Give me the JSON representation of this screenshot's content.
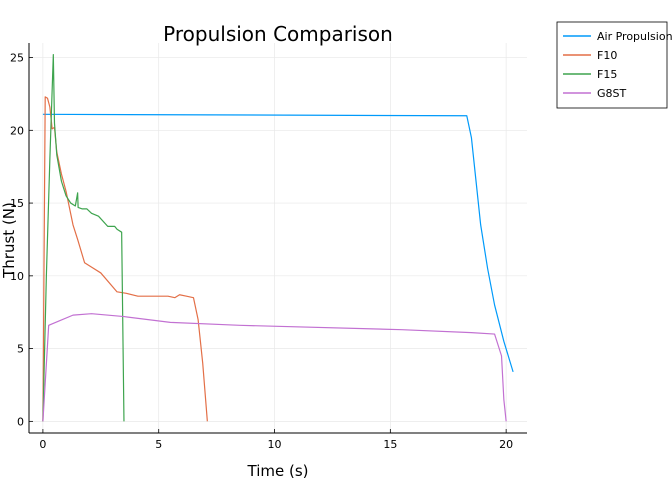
{
  "chart_data": {
    "type": "line",
    "title": "Propulsion Comparison",
    "xlabel": "Time (s)",
    "ylabel": "Thrust (N)",
    "xlim": [
      -0.6,
      20.9
    ],
    "ylim": [
      -0.8,
      26.0
    ],
    "xticks": [
      0,
      5,
      10,
      15,
      20
    ],
    "yticks": [
      0,
      5,
      10,
      15,
      20,
      25
    ],
    "grid": true,
    "legend_position": "outside top-right",
    "series": [
      {
        "name": "Air Propulsion",
        "color": "#009AFA",
        "points": [
          [
            0.0,
            21.1
          ],
          [
            18.3,
            21.0
          ],
          [
            18.5,
            19.5
          ],
          [
            18.7,
            16.5
          ],
          [
            18.9,
            13.5
          ],
          [
            19.2,
            10.5
          ],
          [
            19.5,
            8.0
          ],
          [
            19.9,
            5.5
          ],
          [
            20.3,
            3.4
          ]
        ]
      },
      {
        "name": "F10",
        "color": "#E36F47",
        "points": [
          [
            0.0,
            0.0
          ],
          [
            0.1,
            22.3
          ],
          [
            0.2,
            22.2
          ],
          [
            0.3,
            21.6
          ],
          [
            0.4,
            20.1
          ],
          [
            0.5,
            20.2
          ],
          [
            0.6,
            18.5
          ],
          [
            0.8,
            17.0
          ],
          [
            1.0,
            15.8
          ],
          [
            1.3,
            13.5
          ],
          [
            1.5,
            12.5
          ],
          [
            1.8,
            10.9
          ],
          [
            2.1,
            10.6
          ],
          [
            2.5,
            10.2
          ],
          [
            3.2,
            8.9
          ],
          [
            3.6,
            8.8
          ],
          [
            4.1,
            8.6
          ],
          [
            5.4,
            8.6
          ],
          [
            5.7,
            8.5
          ],
          [
            5.9,
            8.7
          ],
          [
            6.2,
            8.6
          ],
          [
            6.5,
            8.5
          ],
          [
            6.7,
            7.0
          ],
          [
            6.9,
            4.0
          ],
          [
            7.1,
            0.0
          ]
        ]
      },
      {
        "name": "F15",
        "color": "#3EA44E",
        "points": [
          [
            0.0,
            0.0
          ],
          [
            0.15,
            10.0
          ],
          [
            0.3,
            18.0
          ],
          [
            0.45,
            25.2
          ],
          [
            0.5,
            20.5
          ],
          [
            0.6,
            18.3
          ],
          [
            0.8,
            16.5
          ],
          [
            1.0,
            15.5
          ],
          [
            1.2,
            15.0
          ],
          [
            1.4,
            14.8
          ],
          [
            1.5,
            15.7
          ],
          [
            1.52,
            14.7
          ],
          [
            1.7,
            14.6
          ],
          [
            1.9,
            14.6
          ],
          [
            2.1,
            14.3
          ],
          [
            2.4,
            14.1
          ],
          [
            2.8,
            13.4
          ],
          [
            3.1,
            13.4
          ],
          [
            3.2,
            13.2
          ],
          [
            3.4,
            13.0
          ],
          [
            3.5,
            0.0
          ]
        ]
      },
      {
        "name": "G8ST",
        "color": "#C271D2",
        "points": [
          [
            0.0,
            0.0
          ],
          [
            0.25,
            6.6
          ],
          [
            0.7,
            6.9
          ],
          [
            1.3,
            7.3
          ],
          [
            2.1,
            7.4
          ],
          [
            3.5,
            7.2
          ],
          [
            5.5,
            6.8
          ],
          [
            8.5,
            6.6
          ],
          [
            15.5,
            6.3
          ],
          [
            18.5,
            6.1
          ],
          [
            19.5,
            6.0
          ],
          [
            19.8,
            4.5
          ],
          [
            19.9,
            1.5
          ],
          [
            20.0,
            0.0
          ]
        ]
      }
    ]
  }
}
